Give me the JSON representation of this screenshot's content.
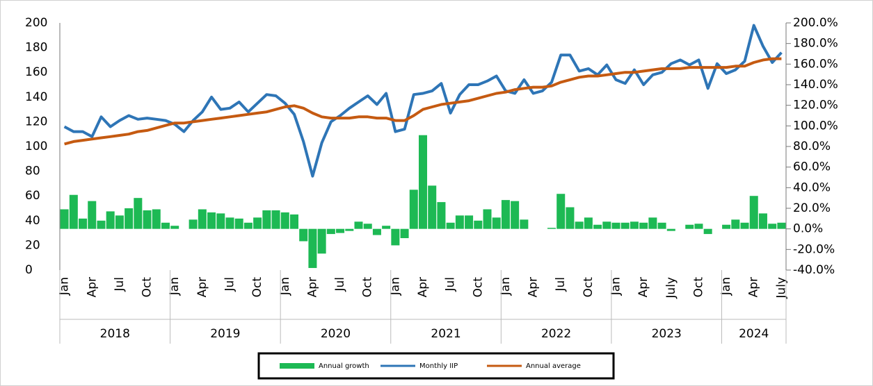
{
  "chart_data": {
    "type": "bar_line_combo",
    "categories": [
      "Jan",
      null,
      null,
      "Apr",
      null,
      null,
      "Jul",
      null,
      null,
      "Oct",
      null,
      null,
      "Jan",
      null,
      null,
      "Apr",
      null,
      null,
      "Jul",
      null,
      null,
      "Oct",
      null,
      null,
      "Jan",
      null,
      null,
      "Apr",
      null,
      null,
      "Jul",
      null,
      null,
      "Oct",
      null,
      null,
      "Jan",
      null,
      null,
      "Apr",
      null,
      null,
      "Jul",
      null,
      null,
      "Oct",
      null,
      null,
      "Jan",
      null,
      null,
      "Apr",
      null,
      null,
      "Jul",
      null,
      null,
      "Oct",
      null,
      null,
      "Jan",
      null,
      null,
      "Apr",
      null,
      null,
      "July",
      null,
      null,
      "Oct",
      null,
      null,
      "Jan",
      null,
      null,
      "Apr",
      null,
      null,
      "July"
    ],
    "year_groups": [
      "2018",
      "2019",
      "2020",
      "2021",
      "2022",
      "2023",
      "2024"
    ],
    "series": [
      {
        "name": "Annual growth",
        "kind": "bar",
        "axis": "y2",
        "color": "#1db954",
        "values": [
          19,
          33,
          10,
          27,
          8,
          17,
          13,
          20,
          30,
          18,
          19,
          6,
          3,
          0,
          9,
          19,
          16,
          15,
          11,
          10,
          6,
          11,
          18,
          18,
          16,
          14,
          -12,
          -38,
          -24,
          -5,
          -4,
          -2,
          7,
          5,
          -6,
          3,
          -16,
          -9,
          38,
          91,
          42,
          26,
          6,
          13,
          13,
          8,
          19,
          11,
          28,
          27,
          9,
          0,
          0,
          1,
          34,
          21,
          7,
          11,
          4,
          7,
          6,
          6,
          7,
          6,
          11,
          6,
          -2,
          0,
          4,
          5,
          -5,
          0,
          4,
          9,
          6,
          32,
          15,
          5,
          6
        ]
      },
      {
        "name": "Monthly IIP",
        "kind": "line",
        "color": "#2e75b6",
        "values": [
          116,
          112,
          112,
          108,
          124,
          116,
          121,
          125,
          122,
          123,
          122,
          121,
          118,
          112,
          121,
          128,
          140,
          130,
          131,
          136,
          128,
          135,
          142,
          141,
          135,
          126,
          104,
          76,
          103,
          120,
          125,
          131,
          136,
          141,
          134,
          143,
          112,
          114,
          142,
          143,
          145,
          151,
          127,
          142,
          150,
          150,
          153,
          157,
          145,
          143,
          154,
          143,
          145,
          152,
          174,
          174,
          161,
          163,
          158,
          166,
          154,
          151,
          162,
          150,
          158,
          160,
          167,
          170,
          166,
          170,
          147,
          167,
          159,
          162,
          169,
          198,
          181,
          168,
          176
        ]
      },
      {
        "name": "Annual average",
        "kind": "line",
        "color": "#c55a11",
        "values": [
          102,
          104,
          105,
          106,
          107,
          108,
          109,
          110,
          112,
          113,
          115,
          117,
          119,
          119,
          120,
          121,
          122,
          123,
          124,
          125,
          126,
          127,
          128,
          130,
          132,
          133,
          131,
          127,
          124,
          123,
          123,
          123,
          124,
          124,
          123,
          123,
          121,
          121,
          125,
          130,
          132,
          134,
          135,
          136,
          137,
          139,
          141,
          143,
          144,
          146,
          147,
          148,
          148,
          149,
          152,
          154,
          156,
          157,
          157,
          158,
          159,
          160,
          160,
          161,
          162,
          163,
          163,
          163,
          164,
          164,
          164,
          164,
          164,
          165,
          165,
          168,
          170,
          171,
          171
        ]
      }
    ],
    "ylim": [
      0,
      200
    ],
    "yticks": [
      0,
      20,
      40,
      60,
      80,
      100,
      120,
      140,
      160,
      180,
      200
    ],
    "y2lim": [
      -40,
      200
    ],
    "y2ticks": [
      {
        "value": -40,
        "label": "-40.0%"
      },
      {
        "value": -20,
        "label": "-20.0%"
      },
      {
        "value": 0,
        "label": "0.0%"
      },
      {
        "value": 20,
        "label": "20.0%"
      },
      {
        "value": 40,
        "label": "40.0%"
      },
      {
        "value": 60,
        "label": "60.0%"
      },
      {
        "value": 80,
        "label": "80.0%"
      },
      {
        "value": 100,
        "label": "100.0%"
      },
      {
        "value": 120,
        "label": "120.0%"
      },
      {
        "value": 140,
        "label": "140.0%"
      },
      {
        "value": 160,
        "label": "160.0%"
      },
      {
        "value": 180,
        "label": "180.0%"
      },
      {
        "value": 200,
        "label": "200.0%"
      }
    ]
  }
}
